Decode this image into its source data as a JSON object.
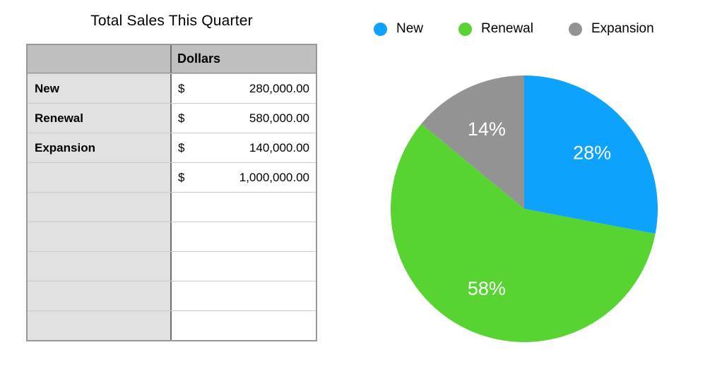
{
  "title": "Total Sales This Quarter",
  "table": {
    "header": {
      "corner": "",
      "dollars": "Dollars"
    },
    "rows": [
      {
        "label": "New",
        "currency": "$",
        "value": "280,000.00"
      },
      {
        "label": "Renewal",
        "currency": "$",
        "value": "580,000.00"
      },
      {
        "label": "Expansion",
        "currency": "$",
        "value": "140,000.00"
      },
      {
        "label": "",
        "currency": "$",
        "value": "1,000,000.00"
      },
      {
        "label": "",
        "currency": "",
        "value": ""
      },
      {
        "label": "",
        "currency": "",
        "value": ""
      },
      {
        "label": "",
        "currency": "",
        "value": ""
      },
      {
        "label": "",
        "currency": "",
        "value": ""
      },
      {
        "label": "",
        "currency": "",
        "value": ""
      }
    ]
  },
  "legend": {
    "items": [
      {
        "label": "New",
        "color": "#0DA2FC"
      },
      {
        "label": "Renewal",
        "color": "#57D431"
      },
      {
        "label": "Expansion",
        "color": "#939393"
      }
    ]
  },
  "chart_data": {
    "type": "pie",
    "title": "Total Sales This Quarter",
    "labels": [
      "New",
      "Renewal",
      "Expansion"
    ],
    "values": [
      280000,
      580000,
      140000
    ],
    "total": 1000000,
    "percentages": [
      28,
      58,
      14
    ],
    "slice_labels": [
      "28%",
      "58%",
      "14%"
    ],
    "colors": [
      "#0DA2FC",
      "#57D431",
      "#939393"
    ],
    "start_angle_deg": 0,
    "direction": "clockwise",
    "legend_position": "top",
    "slice_label_color": "#ffffff"
  }
}
